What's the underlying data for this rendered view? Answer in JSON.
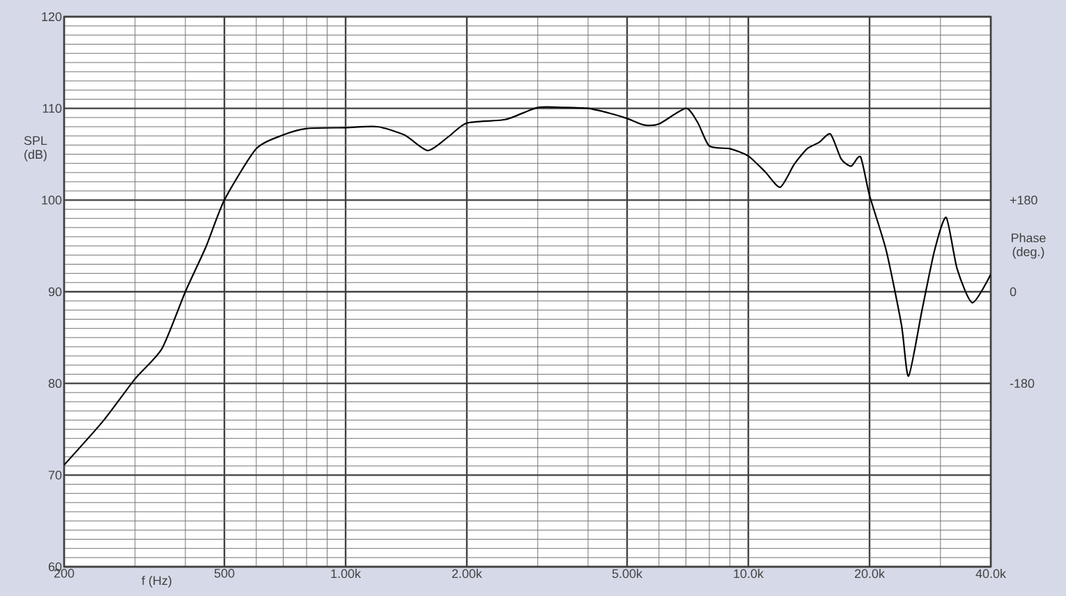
{
  "chart_data": {
    "type": "line",
    "xlabel": "f (Hz)",
    "ylabel": "SPL (dB)",
    "y2label": "Phase (deg.)",
    "log": "x",
    "grid": true,
    "marker": "none",
    "line_style": "solid",
    "xlim": [
      200,
      40000
    ],
    "ylim": [
      60,
      120
    ],
    "xticks": [
      200,
      500,
      {
        "value": 1000,
        "label": "1.00k"
      },
      {
        "value": 2000,
        "label": "2.00k"
      },
      {
        "value": 5000,
        "label": "5.00k"
      },
      {
        "value": 10000,
        "label": "10.0k"
      },
      {
        "value": 20000,
        "label": "20.0k"
      },
      {
        "value": 40000,
        "label": "40.0k"
      }
    ],
    "yticks": [
      60,
      70,
      80,
      90,
      100,
      110,
      120
    ],
    "y2lim": [
      -540,
      540
    ],
    "y2ticks": [
      {
        "value": 180,
        "label": "+180"
      },
      0,
      -180
    ],
    "series": [
      {
        "color": "#000000",
        "x": [
          200,
          250,
          300,
          350,
          400,
          450,
          500,
          600,
          700,
          800,
          1000,
          1200,
          1400,
          1600,
          1800,
          2000,
          2500,
          3000,
          3500,
          4000,
          4500,
          5000,
          5500,
          6000,
          7000,
          7500,
          8000,
          9000,
          10000,
          11000,
          12000,
          13000,
          14000,
          15000,
          16000,
          17000,
          18000,
          19000,
          20000,
          22000,
          24000,
          25000,
          27000,
          29000,
          31000,
          33000,
          36000,
          40000
        ],
        "values": [
          71.1,
          75.9,
          80.5,
          83.8,
          90,
          94.9,
          100,
          105.6,
          107.1,
          107.8,
          107.9,
          108,
          107.1,
          105.4,
          106.9,
          108.4,
          108.8,
          110.1,
          110.1,
          110,
          109.5,
          108.9,
          108.2,
          108.3,
          110,
          108.4,
          105.9,
          105.6,
          104.8,
          103.1,
          101.4,
          103.9,
          105.6,
          106.3,
          107.2,
          104.5,
          103.7,
          104.7,
          100.5,
          94.5,
          86.4,
          80.8,
          88,
          94.5,
          98.1,
          92.5,
          88.8,
          91.9
        ]
      }
    ]
  }
}
